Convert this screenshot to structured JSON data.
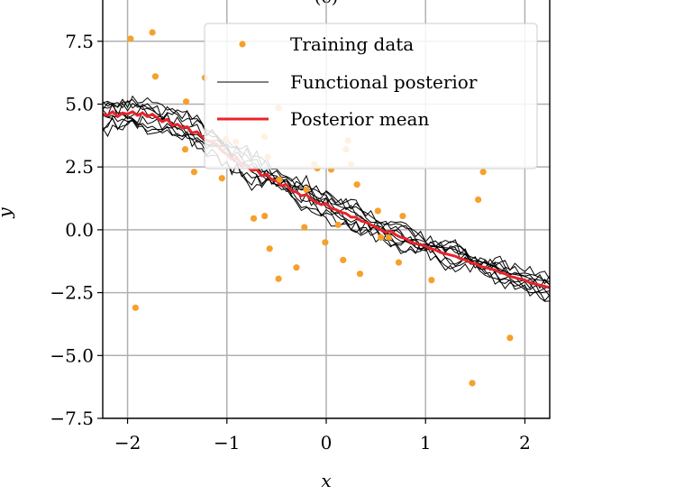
{
  "chart_data": {
    "type": "scatter+line",
    "title": "(c)",
    "xlabel": "x",
    "ylabel": "y",
    "xlim": [
      -2.25,
      2.25
    ],
    "ylim": [
      -7.5,
      9.5
    ],
    "grid": true,
    "legend_position": "top-right",
    "x_ticks": [
      {
        "value": -2,
        "label": "−2"
      },
      {
        "value": -1,
        "label": "−1"
      },
      {
        "value": 0,
        "label": "0"
      },
      {
        "value": 1,
        "label": "1"
      },
      {
        "value": 2,
        "label": "2"
      }
    ],
    "y_ticks": [
      {
        "value": -7.5,
        "label": "−7.5"
      },
      {
        "value": -5.0,
        "label": "−5.0"
      },
      {
        "value": -2.5,
        "label": "−2.5"
      },
      {
        "value": 0.0,
        "label": "0.0"
      },
      {
        "value": 2.5,
        "label": "2.5"
      },
      {
        "value": 5.0,
        "label": "5.0"
      },
      {
        "value": 7.5,
        "label": "7.5"
      }
    ],
    "legend": [
      {
        "label": "Training data",
        "kind": "marker",
        "color": "#f5a12b"
      },
      {
        "label": "Functional posterior",
        "kind": "line",
        "color": "#000000"
      },
      {
        "label": "Posterior mean",
        "kind": "line",
        "color": "#e8232a"
      }
    ],
    "training_data": {
      "name": "Training data",
      "color": "#f5a12b",
      "points": [
        [
          -1.97,
          7.6
        ],
        [
          -1.75,
          7.85
        ],
        [
          -1.72,
          6.1
        ],
        [
          -1.92,
          -3.1
        ],
        [
          -1.41,
          5.1
        ],
        [
          -1.22,
          6.05
        ],
        [
          -1.42,
          3.2
        ],
        [
          -1.33,
          2.3
        ],
        [
          -0.91,
          3.5
        ],
        [
          -1.01,
          3.6
        ],
        [
          -1.05,
          2.05
        ],
        [
          -0.62,
          3.7
        ],
        [
          -0.59,
          2.9
        ],
        [
          -0.48,
          4.85
        ],
        [
          -0.73,
          0.45
        ],
        [
          -0.62,
          0.55
        ],
        [
          -0.57,
          -0.75
        ],
        [
          -0.47,
          2.0
        ],
        [
          -0.48,
          -1.95
        ],
        [
          -0.3,
          -1.5
        ],
        [
          -0.2,
          1.6
        ],
        [
          -0.22,
          0.1
        ],
        [
          -0.12,
          2.6
        ],
        [
          -0.09,
          2.45
        ],
        [
          -0.01,
          -0.5
        ],
        [
          0.05,
          2.4
        ],
        [
          0.12,
          0.2
        ],
        [
          0.17,
          -1.2
        ],
        [
          0.2,
          3.2
        ],
        [
          0.22,
          3.55
        ],
        [
          0.25,
          2.6
        ],
        [
          0.31,
          1.8
        ],
        [
          0.34,
          -1.75
        ],
        [
          0.52,
          0.75
        ],
        [
          0.55,
          -0.3
        ],
        [
          0.63,
          -0.3
        ],
        [
          0.73,
          -1.3
        ],
        [
          0.77,
          0.55
        ],
        [
          1.06,
          -2.0
        ],
        [
          1.47,
          -6.1
        ],
        [
          1.53,
          1.2
        ],
        [
          1.58,
          2.3
        ],
        [
          1.85,
          -4.3
        ]
      ]
    },
    "posterior_mean": {
      "name": "Posterior mean",
      "color": "#e8232a",
      "x": [
        -2.25,
        -2.2,
        -2.15,
        -2.1,
        -2.05,
        -2.0,
        -1.95,
        -1.9,
        -1.85,
        -1.8,
        -1.75,
        -1.7,
        -1.65,
        -1.6,
        -1.55,
        -1.5,
        -1.45,
        -1.4,
        -1.35,
        -1.3,
        -1.25,
        -1.2,
        -1.15,
        -1.1,
        -1.05,
        -1.0,
        -0.95,
        -0.9,
        -0.85,
        -0.8,
        -0.75,
        -0.7,
        -0.65,
        -0.6,
        -0.55,
        -0.5,
        -0.45,
        -0.4,
        -0.35,
        -0.3,
        -0.25,
        -0.2,
        -0.15,
        -0.1,
        -0.05,
        0.0,
        0.05,
        0.1,
        0.15,
        0.2,
        0.25,
        0.3,
        0.35,
        0.4,
        0.45,
        0.5,
        0.55,
        0.6,
        0.65,
        0.7,
        0.75,
        0.8,
        0.85,
        0.9,
        0.95,
        1.0,
        1.05,
        1.1,
        1.15,
        1.2,
        1.25,
        1.3,
        1.35,
        1.4,
        1.45,
        1.5,
        1.55,
        1.6,
        1.65,
        1.7,
        1.75,
        1.8,
        1.85,
        1.9,
        1.95,
        2.0,
        2.05,
        2.1,
        2.15,
        2.2,
        2.25
      ],
      "y": [
        4.6,
        4.55,
        4.7,
        4.5,
        4.65,
        4.6,
        4.7,
        4.55,
        4.65,
        4.5,
        4.6,
        4.45,
        4.3,
        4.4,
        4.15,
        4.2,
        4.05,
        4.1,
        3.85,
        3.9,
        3.7,
        3.55,
        3.5,
        3.4,
        3.15,
        3.0,
        2.8,
        2.85,
        2.6,
        2.55,
        2.35,
        2.4,
        2.15,
        2.2,
        2.0,
        1.95,
        1.75,
        1.8,
        1.55,
        1.5,
        1.35,
        1.4,
        1.2,
        1.1,
        1.0,
        1.05,
        0.85,
        0.8,
        0.7,
        0.65,
        0.5,
        0.5,
        0.35,
        0.3,
        0.2,
        0.1,
        0.0,
        -0.1,
        -0.05,
        -0.2,
        -0.3,
        -0.35,
        -0.5,
        -0.55,
        -0.6,
        -0.65,
        -0.75,
        -0.8,
        -0.9,
        -0.95,
        -1.0,
        -1.05,
        -1.15,
        -1.2,
        -1.3,
        -1.35,
        -1.45,
        -1.5,
        -1.55,
        -1.6,
        -1.7,
        -1.75,
        -1.85,
        -1.9,
        -1.95,
        -2.0,
        -2.1,
        -2.15,
        -2.2,
        -2.25,
        -2.3
      ]
    },
    "functional_posterior": {
      "name": "Functional posterior",
      "color": "#000000",
      "samples": 10,
      "x_breaks": [
        -2.25,
        -1.75,
        -1.25,
        -0.75,
        -0.25,
        0.25,
        0.75,
        1.25,
        1.75,
        2.25
      ],
      "offsets": [
        [
          0.5,
          0.2,
          -0.3,
          0.6,
          0.3,
          -0.4,
          0.5,
          0.2,
          0.1,
          0.3
        ],
        [
          -0.4,
          0.3,
          0.5,
          -0.2,
          0.1,
          0.6,
          -0.3,
          0.4,
          -0.1,
          -0.2
        ],
        [
          0.2,
          -0.5,
          0.1,
          0.4,
          -0.6,
          0.2,
          0.6,
          -0.4,
          0.3,
          0.1
        ],
        [
          -0.7,
          -0.2,
          -0.4,
          -0.5,
          0.4,
          -0.3,
          -0.5,
          0.3,
          -0.3,
          -0.4
        ],
        [
          0.3,
          0.6,
          0.4,
          0.1,
          -0.2,
          0.5,
          0.2,
          -0.6,
          0.4,
          0.5
        ],
        [
          0.6,
          0.1,
          0.7,
          -0.6,
          0.5,
          -0.1,
          -0.2,
          0.5,
          -0.4,
          -0.1
        ],
        [
          -0.2,
          -0.6,
          -0.1,
          0.3,
          -0.4,
          -0.6,
          0.4,
          -0.2,
          0.2,
          -0.5
        ],
        [
          0.1,
          0.4,
          -0.6,
          -0.3,
          0.6,
          0.3,
          -0.6,
          0.6,
          -0.5,
          0.2
        ],
        [
          -0.5,
          0.0,
          0.2,
          0.7,
          -0.1,
          -0.5,
          0.1,
          -0.3,
          0.5,
          -0.3
        ],
        [
          0.0,
          -0.3,
          -0.2,
          -0.1,
          0.2,
          0.4,
          -0.1,
          0.1,
          0.0,
          0.4
        ]
      ]
    }
  }
}
